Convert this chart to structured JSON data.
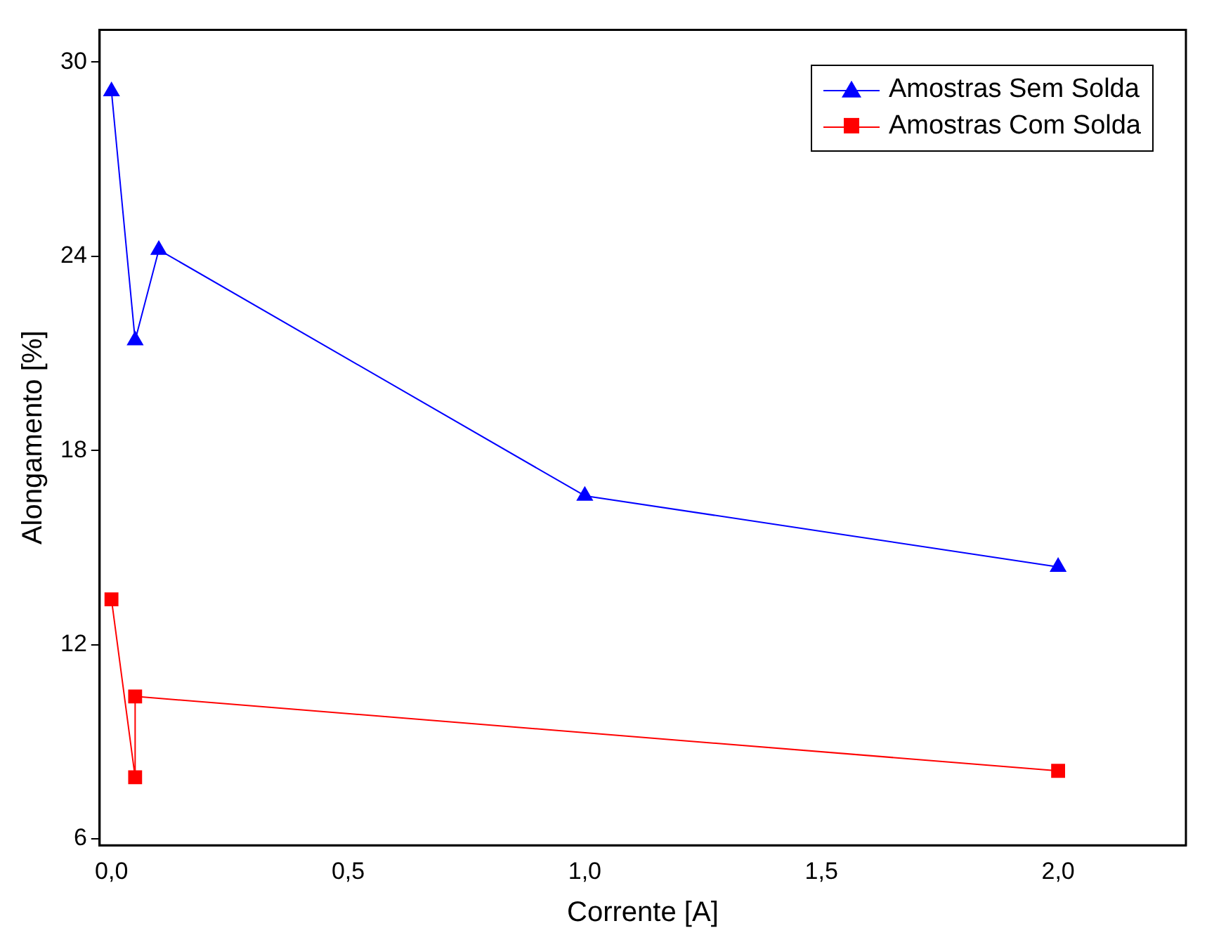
{
  "chart_data": {
    "type": "line",
    "xlabel": "Corrente [A]",
    "ylabel": "Alongamento [%]",
    "xlim": [
      -0.025,
      2.27
    ],
    "ylim": [
      5.8,
      31
    ],
    "xticks": [
      {
        "value": 0,
        "label": "0,0"
      },
      {
        "value": 0.5,
        "label": "0,5"
      },
      {
        "value": 1,
        "label": "1,0"
      },
      {
        "value": 1.5,
        "label": "1,5"
      },
      {
        "value": 2,
        "label": "2,0"
      }
    ],
    "yticks": [
      6,
      12,
      18,
      24,
      30
    ],
    "grid": false,
    "legend": "top right",
    "series": [
      {
        "name": "Amostras Sem Solda",
        "color": "#0000ff",
        "marker": "triangle",
        "x": [
          0,
          0.05,
          0.1,
          1,
          2
        ],
        "values": [
          29.1,
          21.4,
          24.2,
          16.6,
          14.4
        ]
      },
      {
        "name": "Amostras Com Solda",
        "color": "#ff0000",
        "marker": "square",
        "x": [
          0,
          0.05,
          0.05,
          2
        ],
        "values": [
          13.4,
          7.9,
          10.4,
          8.1
        ]
      }
    ]
  }
}
